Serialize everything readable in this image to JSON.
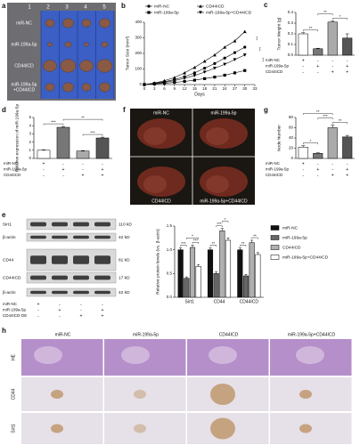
{
  "panel_a": {
    "panel": "a",
    "col_numbers": [
      "1",
      "2",
      "3",
      "4",
      "5"
    ],
    "row_labels": [
      [
        "miR-NC"
      ],
      [
        "miR-199a-5p"
      ],
      [
        "CD44ICD"
      ],
      [
        "miR-199a-5p",
        "+CD44ICD"
      ]
    ]
  },
  "chart_data": [
    {
      "panel": "b",
      "type": "line",
      "x_label": "Days",
      "y_label": "Tumor Size (mm³)",
      "x": [
        0,
        3,
        6,
        9,
        12,
        15,
        18,
        21,
        24,
        27,
        30
      ],
      "xlim": [
        0,
        33
      ],
      "xticks": [
        0,
        3,
        6,
        9,
        12,
        15,
        18,
        21,
        24,
        27,
        30,
        33
      ],
      "ylim": [
        0,
        400
      ],
      "yticks": [
        0,
        100,
        200,
        300,
        400
      ],
      "series": [
        {
          "name": "miR-NC",
          "color": "#000000",
          "marker": "circle",
          "values": [
            0,
            8,
            18,
            32,
            50,
            75,
            105,
            135,
            170,
            205,
            240
          ]
        },
        {
          "name": "miR-199a-5p",
          "color": "#000000",
          "marker": "square",
          "values": [
            0,
            4,
            8,
            14,
            20,
            28,
            38,
            48,
            60,
            75,
            90
          ]
        },
        {
          "name": "CD44ICD",
          "color": "#000000",
          "marker": "triangle-up",
          "values": [
            0,
            10,
            25,
            45,
            75,
            110,
            150,
            190,
            240,
            280,
            340
          ]
        },
        {
          "name": "miR-199a-5p+CD44ICD",
          "color": "#000000",
          "marker": "triangle-down",
          "values": [
            0,
            6,
            14,
            25,
            40,
            58,
            80,
            105,
            130,
            160,
            190
          ]
        }
      ],
      "significance": [
        "***",
        "***",
        "***"
      ]
    },
    {
      "panel": "c",
      "type": "bar",
      "y_label": "Tumor Weight (g)",
      "values": [
        0.2,
        0.06,
        0.31,
        0.16
      ],
      "errors": [
        0.01,
        0.005,
        0.01,
        0.04
      ],
      "colors": [
        "#ffffff",
        "#777777",
        "#aaaaaa",
        "#555555"
      ],
      "ylim": [
        0,
        0.4
      ],
      "yticks": [
        {
          "value": 0,
          "label": "0.0"
        },
        {
          "value": 0.1,
          "label": "0.1"
        },
        {
          "value": 0.2,
          "label": "0.2"
        },
        {
          "value": 0.3,
          "label": "0.3"
        },
        {
          "value": 0.4,
          "label": "0.4"
        }
      ],
      "brackets": [
        {
          "between": [
            0,
            1
          ],
          "label": "**"
        },
        {
          "between": [
            2,
            3
          ],
          "label": "*"
        },
        {
          "between": [
            1,
            2
          ],
          "label": "**"
        }
      ],
      "conditions": [
        {
          "name": "miR-NC",
          "signs": [
            "+",
            "-",
            "-",
            "-"
          ]
        },
        {
          "name": "miR-199a-5p",
          "signs": [
            "-",
            "+",
            "-",
            "+"
          ]
        },
        {
          "name": "CD44ICD",
          "signs": [
            "-",
            "-",
            "+",
            "+"
          ]
        }
      ]
    },
    {
      "panel": "d",
      "type": "bar",
      "y_label": "Relative expression of miR-199a-5p",
      "values": [
        1.0,
        3.8,
        0.9,
        2.5
      ],
      "errors": [
        0.05,
        0.1,
        0.05,
        0.1
      ],
      "colors": [
        "#ffffff",
        "#777777",
        "#aaaaaa",
        "#555555"
      ],
      "ylim": [
        0,
        5
      ],
      "yticks": [
        0,
        1,
        2,
        3,
        4,
        5
      ],
      "brackets": [
        {
          "between": [
            0,
            1
          ],
          "label": "***"
        },
        {
          "between": [
            2,
            3
          ],
          "label": "***"
        },
        {
          "between": [
            1,
            3
          ],
          "label": "**"
        }
      ],
      "conditions": [
        {
          "name": "miR-NC",
          "signs": [
            "+",
            "-",
            "-",
            "-"
          ]
        },
        {
          "name": "miR-199a-5p",
          "signs": [
            "-",
            "+",
            "-",
            "+"
          ]
        },
        {
          "name": "CD44ICD",
          "signs": [
            "-",
            "-",
            "+",
            "+"
          ]
        }
      ]
    },
    {
      "panel": "g",
      "type": "bar",
      "y_label": "Node Number",
      "values": [
        22,
        10,
        60,
        42
      ],
      "errors": [
        3,
        1,
        5,
        3
      ],
      "colors": [
        "#ffffff",
        "#777777",
        "#aaaaaa",
        "#555555"
      ],
      "ylim": [
        0,
        80
      ],
      "yticks": [
        0,
        20,
        40,
        60,
        80
      ],
      "brackets": [
        {
          "between": [
            0,
            1
          ],
          "label": "*"
        },
        {
          "between": [
            2,
            3
          ],
          "label": "**"
        },
        {
          "between": [
            1,
            2
          ],
          "label": "***"
        },
        {
          "between": [
            0,
            2
          ],
          "label": "**"
        }
      ],
      "conditions": [
        {
          "name": "miR-NC",
          "signs": [
            "+",
            "-",
            "-",
            "-"
          ]
        },
        {
          "name": "miR-199a-5p",
          "signs": [
            "-",
            "+",
            "-",
            "+"
          ]
        },
        {
          "name": "CD44ICD",
          "signs": [
            "-",
            "-",
            "+",
            "+"
          ]
        }
      ]
    },
    {
      "panel": "e",
      "type": "grouped_bar",
      "y_label": "Relative protein levels (vs. β-actin)",
      "categories": [
        "Sirt1",
        "CD44",
        "CD44ICD"
      ],
      "ylim": [
        0,
        1.5
      ],
      "yticks": [
        {
          "value": 0,
          "label": "0.0"
        },
        {
          "value": 0.5,
          "label": "0.5"
        },
        {
          "value": 1,
          "label": "1.0"
        },
        {
          "value": 1.5,
          "label": "1.5"
        }
      ],
      "series": [
        {
          "name": "miR-NC",
          "color": "#111111",
          "values": [
            1.0,
            1.0,
            1.0
          ],
          "errors": [
            0.04,
            0.04,
            0.04
          ]
        },
        {
          "name": "miR-199a-5p",
          "color": "#666666",
          "values": [
            0.4,
            0.5,
            0.45
          ],
          "errors": [
            0.03,
            0.04,
            0.03
          ]
        },
        {
          "name": "CD44ICD",
          "color": "#b0b0b0",
          "values": [
            1.05,
            1.4,
            1.15
          ],
          "errors": [
            0.05,
            0.05,
            0.05
          ]
        },
        {
          "name": "miR-199a-5p+CD44ICD",
          "color": "#ffffff",
          "values": [
            0.65,
            1.2,
            0.9
          ],
          "errors": [
            0.04,
            0.05,
            0.04
          ]
        }
      ],
      "brackets": [
        {
          "category": 0,
          "between": [
            0,
            1
          ],
          "label": "***"
        },
        {
          "category": 0,
          "between": [
            2,
            3
          ],
          "label": "***"
        },
        {
          "category": 0,
          "between": [
            1,
            3
          ],
          "label": "*"
        },
        {
          "category": 1,
          "between": [
            0,
            1
          ],
          "label": "**"
        },
        {
          "category": 1,
          "between": [
            1,
            2
          ],
          "label": "***"
        },
        {
          "category": 1,
          "between": [
            2,
            3
          ],
          "label": "*"
        },
        {
          "category": 2,
          "between": [
            0,
            1
          ],
          "label": "**"
        },
        {
          "category": 2,
          "between": [
            2,
            3
          ],
          "label": "**"
        }
      ]
    }
  ],
  "panel_f": {
    "panel": "f",
    "labels": [
      "miR-NC",
      "miR-199a-5p",
      "CD44ICD",
      "miR-199a-5p+CD44ICD"
    ]
  },
  "blot": {
    "panel": "e",
    "proteins": [
      "Sirt1",
      "β-actin",
      "CD44",
      "CD44ICD",
      "β-actin"
    ],
    "sizes": [
      "110 kD",
      "42 kD",
      "81 kD",
      "17 kD",
      "42 kD"
    ],
    "conditions": [
      {
        "name": "miR-NC",
        "signs": [
          "+",
          "-",
          "-",
          "-"
        ]
      },
      {
        "name": "miR-199a-5p",
        "signs": [
          "-",
          "+",
          "-",
          "+"
        ]
      },
      {
        "name": "CD44ICD-OE",
        "signs": [
          "-",
          "-",
          "+",
          "+"
        ]
      }
    ]
  },
  "panel_h": {
    "panel": "h",
    "col_labels": [
      "miR-NC",
      "miR-199a-5p",
      "CD44ICD",
      "miR-199a-5p+CD44ICD"
    ],
    "row_labels": [
      "HE",
      "CD44",
      "Sirt1"
    ]
  }
}
